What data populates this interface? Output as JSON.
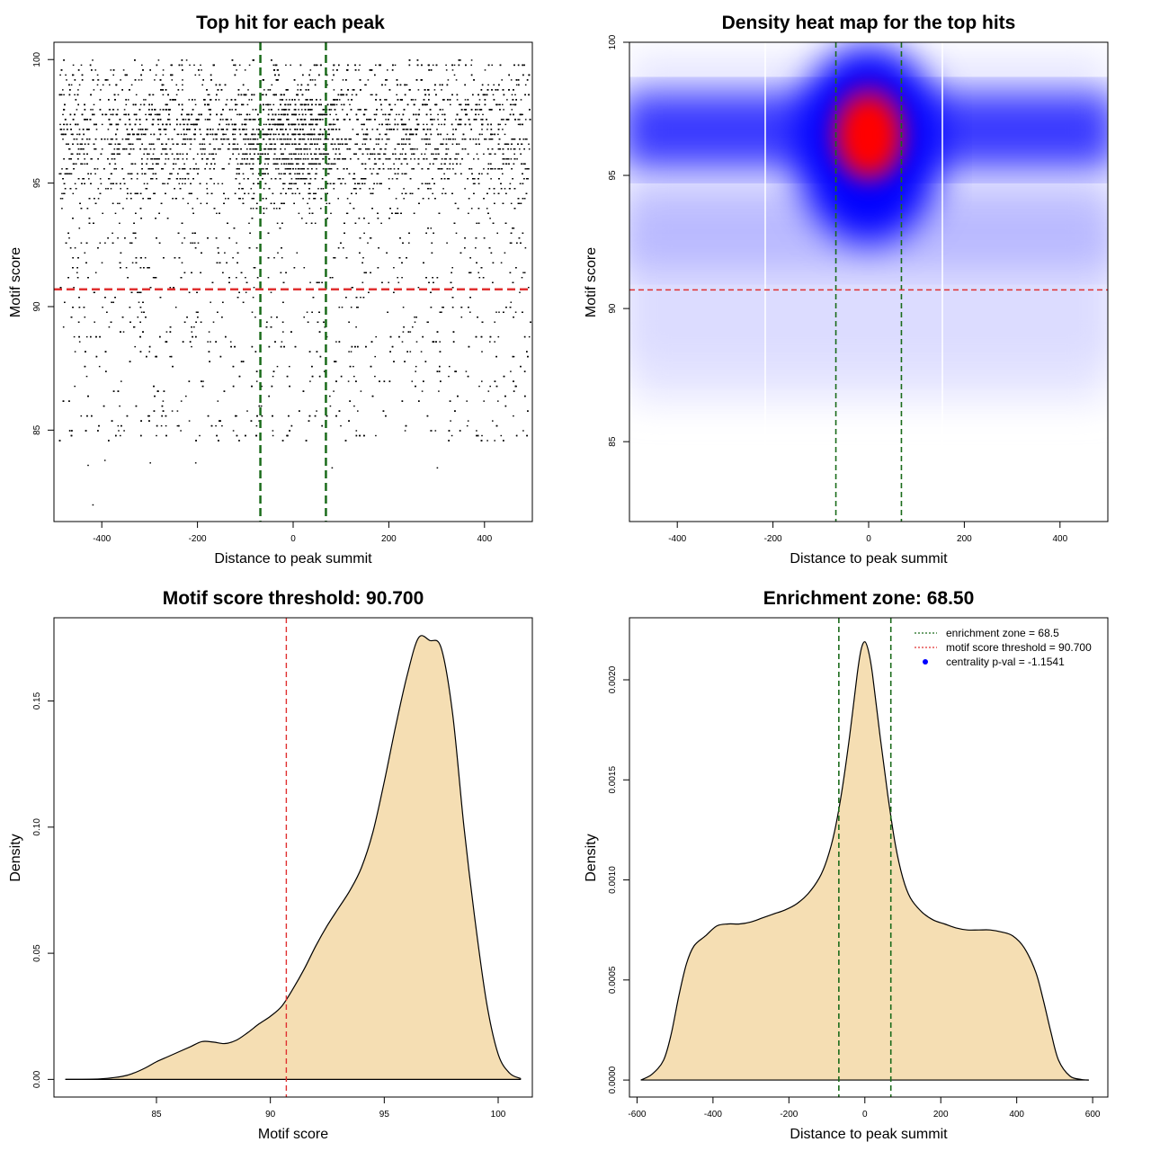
{
  "chart_data": [
    {
      "id": "scatter",
      "type": "scatter",
      "title": "Top hit for each peak",
      "xlabel": "Distance to peak summit",
      "ylabel": "Motif score",
      "xlim": [
        -500,
        500
      ],
      "ylim": [
        81.3,
        100.7
      ],
      "xticks": [
        -400,
        -200,
        0,
        200,
        400
      ],
      "yticks": [
        85,
        90,
        95,
        100
      ],
      "reference_lines": [
        {
          "orientation": "vertical",
          "value": -68.5,
          "color": "#1a6b1a",
          "style": "dashed"
        },
        {
          "orientation": "vertical",
          "value": 68.5,
          "color": "#1a6b1a",
          "style": "dashed"
        },
        {
          "orientation": "horizontal",
          "value": 90.7,
          "color": "#e03030",
          "style": "dashed"
        }
      ],
      "approx_point_count": 9000,
      "distribution": {
        "x_range": [
          -490,
          495
        ],
        "score_mode": 96.8,
        "central_cluster_center": [
          0,
          96.5
        ],
        "outliers": [
          [
            -420,
            82.0
          ],
          [
            -430,
            83.6
          ],
          [
            -395,
            83.8
          ],
          [
            -300,
            83.7
          ],
          [
            -205,
            83.7
          ],
          [
            80,
            83.5
          ],
          [
            300,
            83.5
          ]
        ]
      }
    },
    {
      "id": "heatmap",
      "type": "heatmap",
      "title": "Density heat map for the top hits",
      "xlabel": "Distance to peak summit",
      "ylabel": "Motif score",
      "xlim": [
        -500,
        500
      ],
      "ylim": [
        82,
        100
      ],
      "xticks": [
        -400,
        -200,
        0,
        200,
        400
      ],
      "yticks": [
        85,
        90,
        95,
        100
      ],
      "colors": {
        "low": "#ffffff",
        "mid": "#0000ff",
        "high": "#ff0000"
      },
      "hotspot": {
        "x": 0,
        "y": 96.5,
        "level": 1.0
      },
      "band": {
        "y": 96.7,
        "x_range": [
          -500,
          500
        ],
        "level": 0.55
      },
      "reference_lines": [
        {
          "orientation": "vertical",
          "value": -68.5,
          "color": "#1a6b1a",
          "style": "dashed"
        },
        {
          "orientation": "vertical",
          "value": 68.5,
          "color": "#1a6b1a",
          "style": "dashed"
        },
        {
          "orientation": "horizontal",
          "value": 90.7,
          "color": "#e03030",
          "style": "dashed"
        }
      ]
    },
    {
      "id": "density-score",
      "type": "area",
      "title": "Motif score threshold: 90.700",
      "xlabel": "Motif score",
      "ylabel": "Density",
      "xlim": [
        80.5,
        101.5
      ],
      "ylim": [
        -0.007,
        0.183
      ],
      "xticks": [
        85,
        90,
        95,
        100
      ],
      "yticks": [
        0.0,
        0.05,
        0.1,
        0.15
      ],
      "ytick_labels": [
        "0.00",
        "0.05",
        "0.10",
        "0.15"
      ],
      "fill_color": "#f5deb3",
      "x": [
        81.0,
        82.5,
        83.5,
        84.0,
        84.5,
        85.0,
        85.5,
        86.0,
        86.5,
        87.0,
        87.5,
        88.0,
        88.5,
        89.0,
        89.5,
        90.0,
        90.5,
        91.0,
        91.5,
        92.0,
        92.5,
        93.0,
        93.5,
        94.0,
        94.5,
        95.0,
        95.5,
        96.0,
        96.5,
        97.0,
        97.5,
        98.0,
        98.5,
        99.0,
        99.5,
        100.0,
        100.5,
        101.0
      ],
      "y": [
        0.0,
        0.0002,
        0.0012,
        0.0025,
        0.0045,
        0.007,
        0.009,
        0.011,
        0.013,
        0.015,
        0.0148,
        0.0142,
        0.0155,
        0.0185,
        0.022,
        0.025,
        0.029,
        0.036,
        0.044,
        0.053,
        0.061,
        0.068,
        0.075,
        0.084,
        0.098,
        0.118,
        0.14,
        0.16,
        0.175,
        0.174,
        0.171,
        0.145,
        0.1,
        0.062,
        0.03,
        0.01,
        0.0025,
        0.0003
      ],
      "reference_lines": [
        {
          "orientation": "vertical",
          "value": 90.7,
          "color": "#e03030",
          "style": "dashed"
        }
      ]
    },
    {
      "id": "density-distance",
      "type": "area",
      "title": "Enrichment zone: 68.50",
      "xlabel": "Distance to peak summit",
      "ylabel": "Density",
      "xlim": [
        -620,
        640
      ],
      "ylim": [
        -8.5e-05,
        0.00231
      ],
      "xticks": [
        -600,
        -400,
        -200,
        0,
        200,
        400,
        600
      ],
      "yticks": [
        0.0,
        0.0005,
        0.001,
        0.0015,
        0.002
      ],
      "ytick_labels": [
        "0.0000",
        "0.0005",
        "0.0010",
        "0.0015",
        "0.0020"
      ],
      "fill_color": "#f5deb3",
      "x": [
        -590,
        -560,
        -530,
        -510,
        -490,
        -470,
        -450,
        -420,
        -390,
        -360,
        -330,
        -300,
        -270,
        -240,
        -210,
        -180,
        -150,
        -120,
        -100,
        -80,
        -60,
        -40,
        -20,
        -10,
        0,
        10,
        20,
        40,
        60,
        80,
        100,
        120,
        150,
        180,
        210,
        240,
        270,
        300,
        330,
        360,
        390,
        420,
        450,
        470,
        490,
        510,
        540,
        570,
        590
      ],
      "y": [
        0.0,
        3e-05,
        0.0001,
        0.00023,
        0.00042,
        0.00058,
        0.00067,
        0.00072,
        0.00077,
        0.00078,
        0.00078,
        0.00079,
        0.00081,
        0.00083,
        0.00085,
        0.00088,
        0.00093,
        0.00101,
        0.0011,
        0.00124,
        0.00145,
        0.00172,
        0.00203,
        0.00215,
        0.00219,
        0.00214,
        0.00203,
        0.00172,
        0.00143,
        0.00118,
        0.00101,
        0.00091,
        0.00084,
        0.0008,
        0.00078,
        0.00076,
        0.00075,
        0.00075,
        0.00075,
        0.00074,
        0.00072,
        0.00066,
        0.00054,
        0.0004,
        0.00024,
        0.0001,
        2e-05,
        3e-06,
        0.0
      ],
      "reference_lines": [
        {
          "orientation": "vertical",
          "value": -68.5,
          "color": "#1a6b1a",
          "style": "dashed"
        },
        {
          "orientation": "vertical",
          "value": 68.5,
          "color": "#1a6b1a",
          "style": "dashed"
        }
      ],
      "legend": {
        "position": "top-right",
        "entries": [
          {
            "label": "enrichment zone = 68.5",
            "color": "#1a6b1a",
            "symbol": "dotted-line"
          },
          {
            "label": "motif score threshold = 90.700",
            "color": "#e03030",
            "symbol": "dotted-line"
          },
          {
            "label": "centrality p-val = -1.1541",
            "color": "#0000ff",
            "symbol": "point"
          }
        ]
      }
    }
  ]
}
